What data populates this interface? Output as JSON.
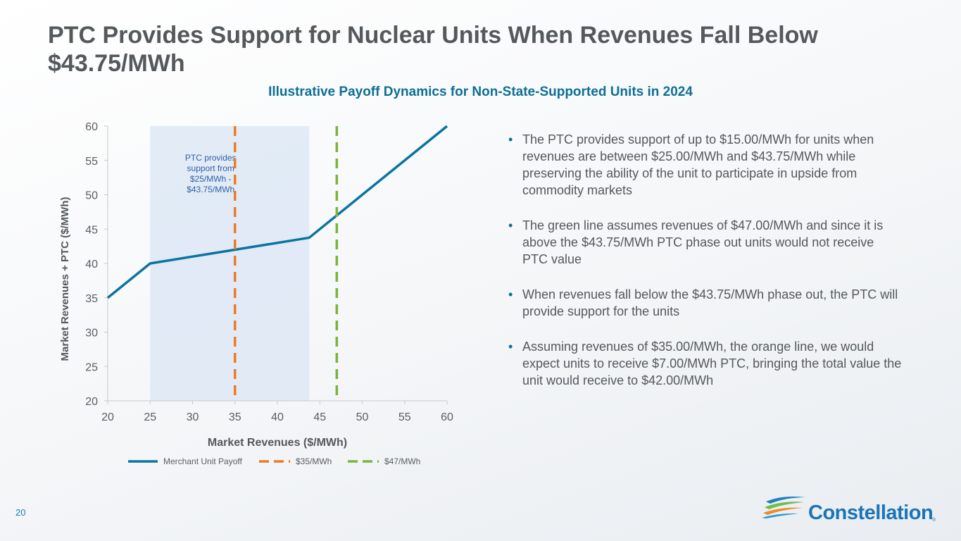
{
  "slide": {
    "title": "PTC Provides Support for Nuclear Units When Revenues Fall Below $43.75/MWh",
    "subtitle": "Illustrative Payoff Dynamics for Non-State-Supported Units in 2024",
    "page_number": "20",
    "logo_text": "Constellation",
    "logo_reg": "®",
    "bullets": [
      "The PTC provides support of up to $15.00/MWh for units when revenues are between $25.00/MWh and $43.75/MWh while preserving the ability of the unit to participate in upside from commodity markets",
      "The green line assumes revenues of $47.00/MWh and since it is above the $43.75/MWh PTC phase out units would not receive PTC value",
      "When revenues fall below the $43.75/MWh phase out, the PTC will provide support for the units",
      "Assuming revenues of $35.00/MWh, the orange line, we would expect units to receive $7.00/MWh PTC, bringing the total value the unit would receive to $42.00/MWh"
    ]
  },
  "colors": {
    "title": "#55595c",
    "subtitle": "#0e6f94",
    "merchant": "#0a74a1",
    "line35": "#ee7a24",
    "line47": "#7ab539",
    "band": "#dde8f4",
    "band_text": "#2e62a6",
    "axis_text": "#5a5e62"
  },
  "chart_data": {
    "type": "line",
    "xlabel": "Market Revenues ($/MWh)",
    "ylabel": "Market Revenues + PTC ($/MWh)",
    "xlim": [
      20,
      60
    ],
    "ylim": [
      20,
      60
    ],
    "xticks": [
      20,
      25,
      30,
      35,
      40,
      45,
      50,
      55,
      60
    ],
    "yticks": [
      20,
      25,
      30,
      35,
      40,
      45,
      50,
      55,
      60
    ],
    "grid": false,
    "legend_position": "bottom",
    "shaded_region": {
      "x": [
        25,
        43.75
      ],
      "label": "PTC provides support from $25/MWh - $43.75/MWh"
    },
    "series": [
      {
        "name": "Merchant Unit Payoff",
        "style": "solid",
        "x": [
          20,
          25,
          43.75,
          60
        ],
        "y": [
          35,
          40,
          43.75,
          60
        ]
      },
      {
        "name": "$35/MWh",
        "style": "dashed",
        "vertical_x": 35
      },
      {
        "name": "$47/MWh",
        "style": "dashed",
        "vertical_x": 47
      }
    ]
  }
}
